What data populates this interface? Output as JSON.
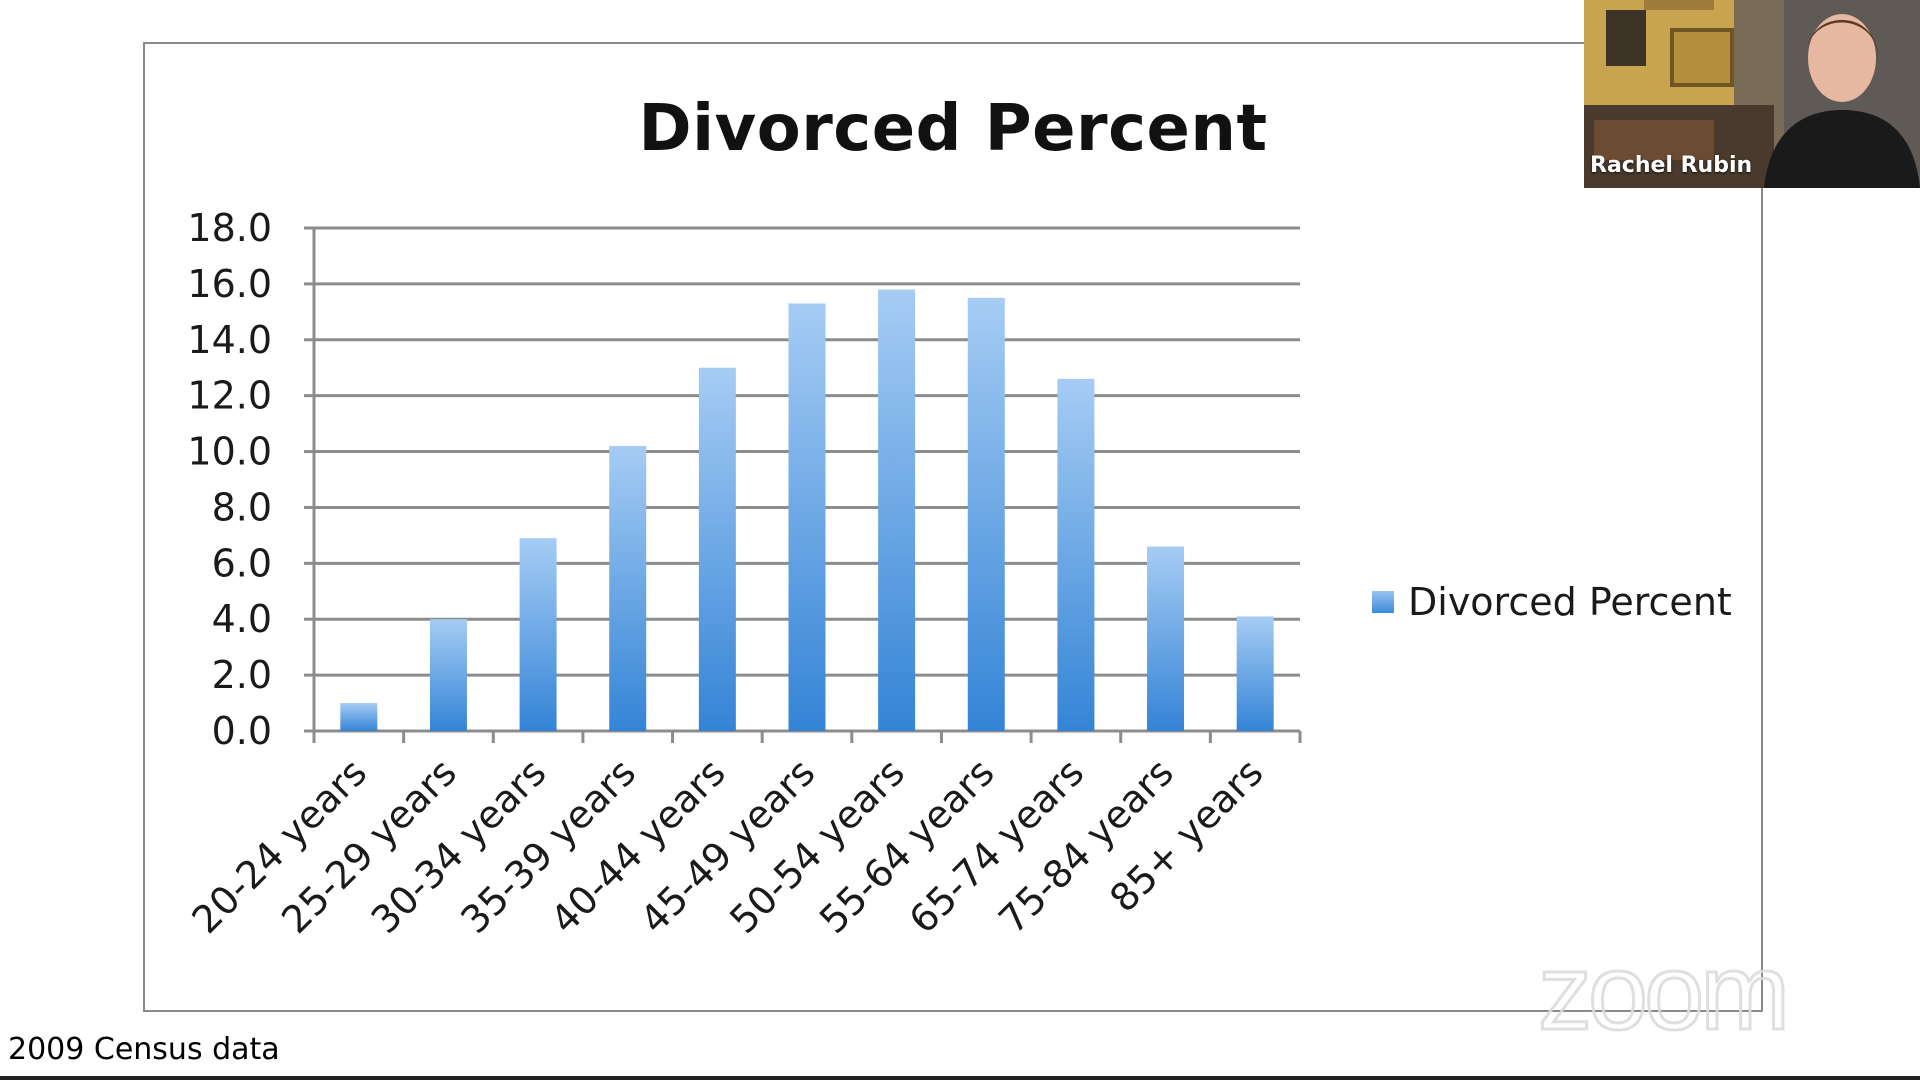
{
  "caption": "2009 Census data",
  "participant": {
    "name": "Rachel Rubin"
  },
  "watermark": "zoom",
  "colors": {
    "bar_top": "#a6ccf4",
    "bar_bottom": "#3484d6",
    "grid": "#8c8c8c"
  },
  "chart_data": {
    "type": "bar",
    "title": "Divorced Percent",
    "xlabel": "",
    "ylabel": "",
    "ylim": [
      0,
      18
    ],
    "ytick_labels": [
      "0.0",
      "2.0",
      "4.0",
      "6.0",
      "8.0",
      "10.0",
      "12.0",
      "14.0",
      "16.0",
      "18.0"
    ],
    "grid": true,
    "legend_position": "right",
    "categories": [
      "20-24 years",
      "25-29 years",
      "30-34 years",
      "35-39 years",
      "40-44 years",
      "45-49 years",
      "50-54 years",
      "55-64 years",
      "65-74 years",
      "75-84 years",
      "85+ years"
    ],
    "series": [
      {
        "name": "Divorced Percent",
        "values": [
          1.0,
          4.0,
          6.9,
          10.2,
          13.0,
          15.3,
          15.8,
          15.5,
          12.6,
          6.6,
          4.1
        ]
      }
    ]
  }
}
